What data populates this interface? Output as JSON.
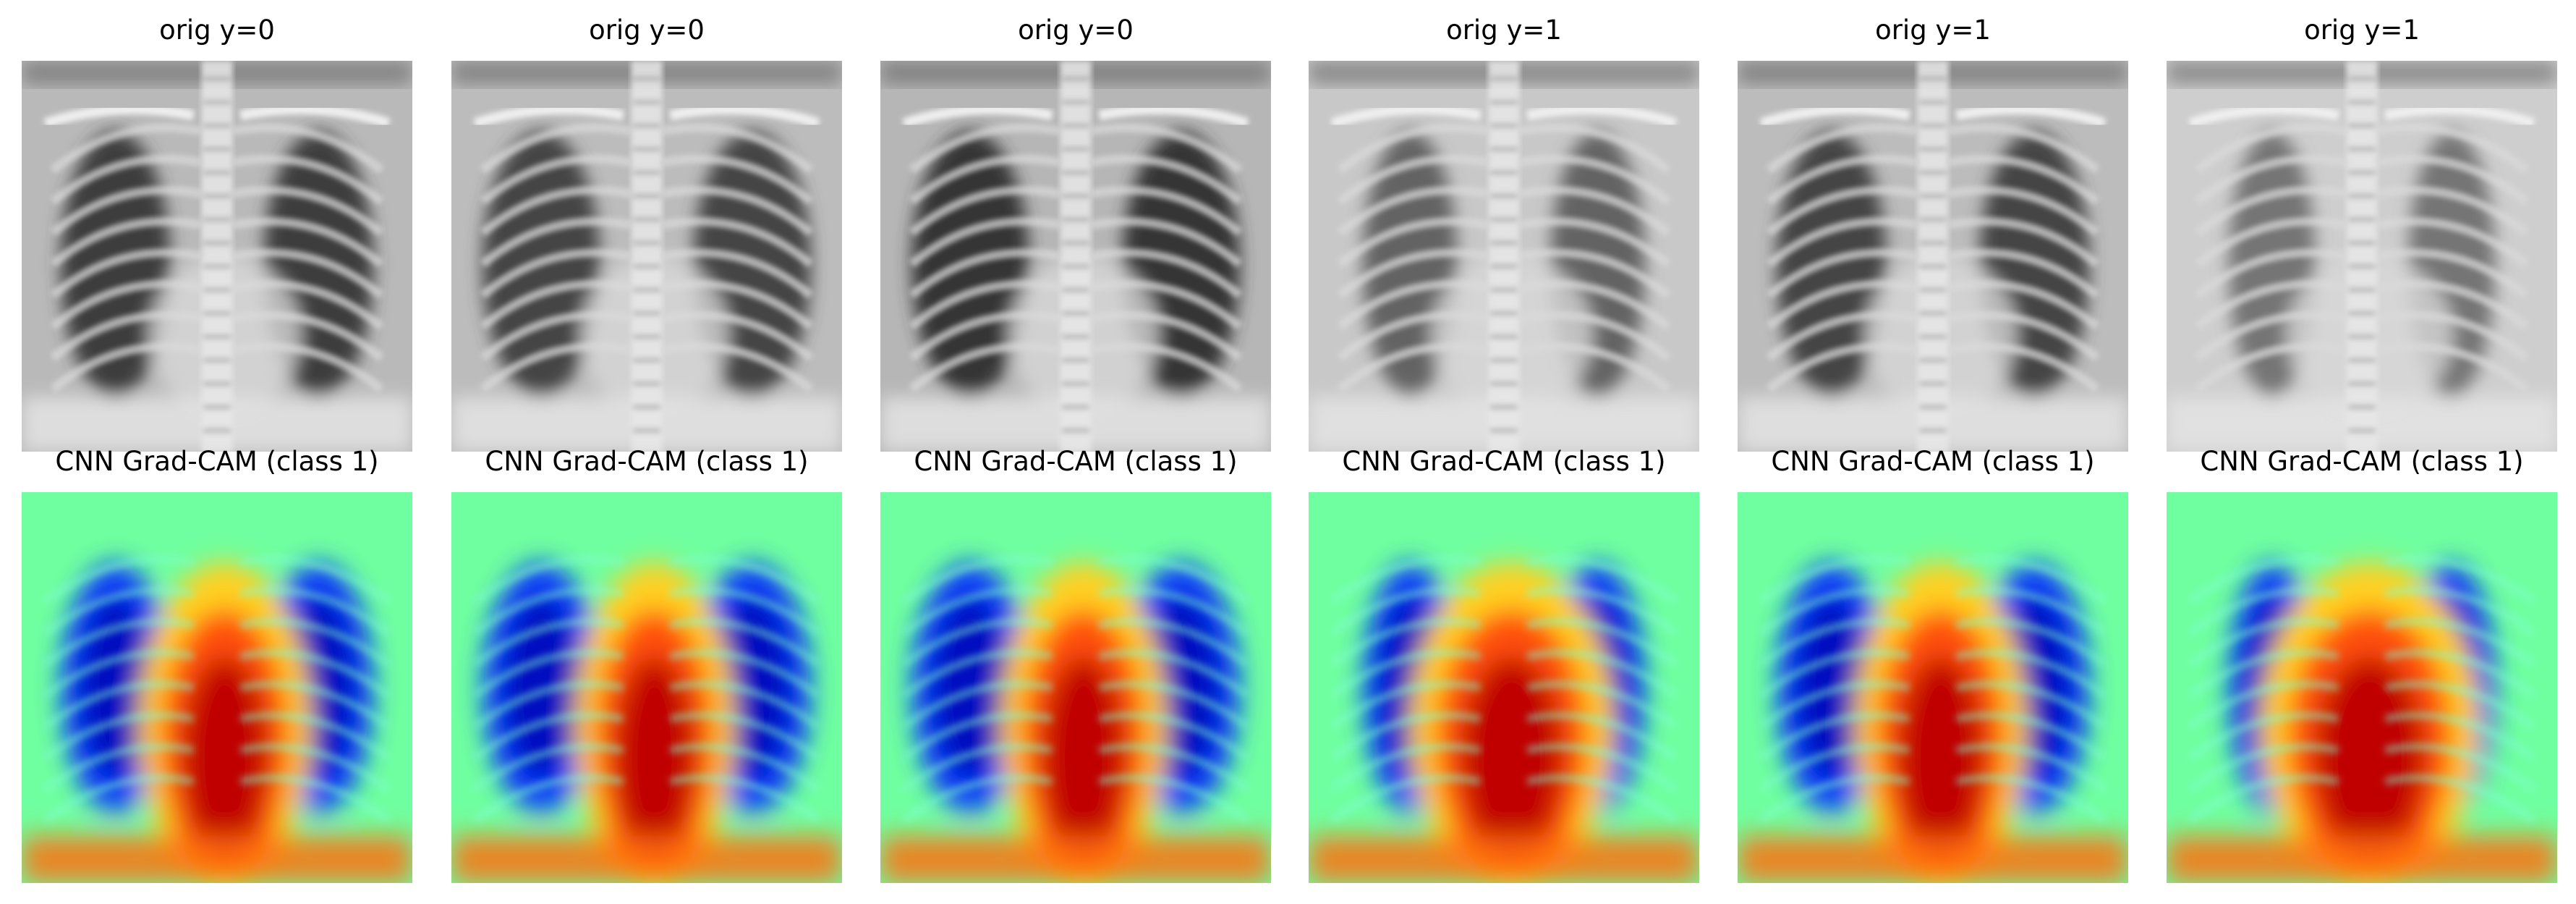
{
  "rows": [
    {
      "kind": "original",
      "colormap": "gray",
      "panels": [
        {
          "title": "orig y=0"
        },
        {
          "title": "orig y=0"
        },
        {
          "title": "orig y=0"
        },
        {
          "title": "orig y=1"
        },
        {
          "title": "orig y=1"
        },
        {
          "title": "orig y=1"
        }
      ]
    },
    {
      "kind": "gradcam",
      "colormap": "jet",
      "panels": [
        {
          "title": "CNN Grad-CAM (class 1)"
        },
        {
          "title": "CNN Grad-CAM (class 1)"
        },
        {
          "title": "CNN Grad-CAM (class 1)"
        },
        {
          "title": "CNN Grad-CAM (class 1)"
        },
        {
          "title": "CNN Grad-CAM (class 1)"
        },
        {
          "title": "CNN Grad-CAM (class 1)"
        }
      ]
    }
  ],
  "colors": {
    "jet_low": "#00008f",
    "jet_mid": "#7fff7f",
    "jet_high": "#800000",
    "gray_dark": "#202020",
    "gray_light": "#f0f0f0"
  }
}
